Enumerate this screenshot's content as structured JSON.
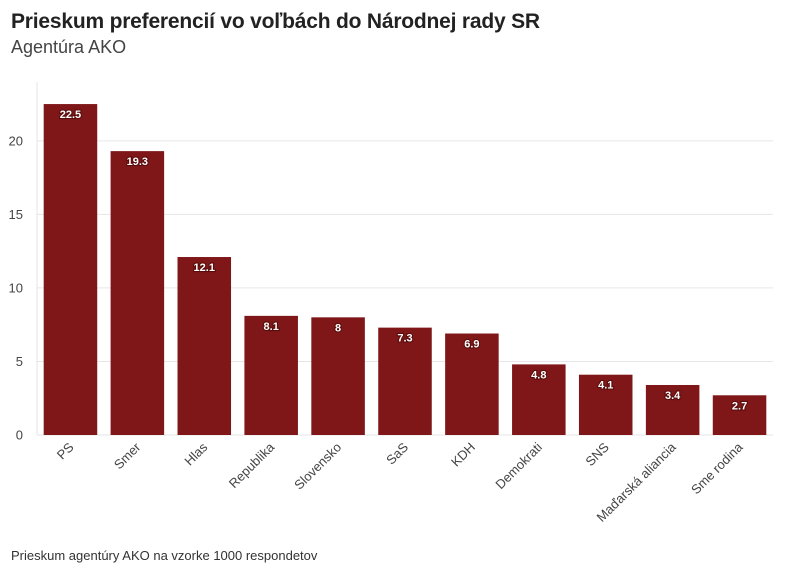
{
  "header": {
    "title": "Prieskum preferencií vo voľbách do Národnej rady SR",
    "subtitle": "Agentúra AKO"
  },
  "footer": {
    "note": "Prieskum agentúry AKO na vzorke 1000 respondetov"
  },
  "chart_data": {
    "type": "bar",
    "categories": [
      "PS",
      "Smer",
      "Hlas",
      "Republika",
      "Slovensko",
      "SaS",
      "KDH",
      "Demokrati",
      "SNS",
      "Maďarská aliancia",
      "Sme rodina"
    ],
    "values": [
      22.5,
      19.3,
      12.1,
      8.1,
      8,
      7.3,
      6.9,
      4.8,
      4.1,
      3.4,
      2.7
    ],
    "data_labels": [
      "22.5",
      "19.3",
      "12.1",
      "8.1",
      "8",
      "7.3",
      "6.9",
      "4.8",
      "4.1",
      "3.4",
      "2.7"
    ],
    "y_ticks": [
      0,
      5,
      10,
      15,
      20
    ],
    "ylim": [
      0,
      24
    ],
    "grid": true,
    "bar_color": "#7f1719",
    "grid_color": "#e6e6e6",
    "xlabel": "",
    "ylabel": ""
  }
}
